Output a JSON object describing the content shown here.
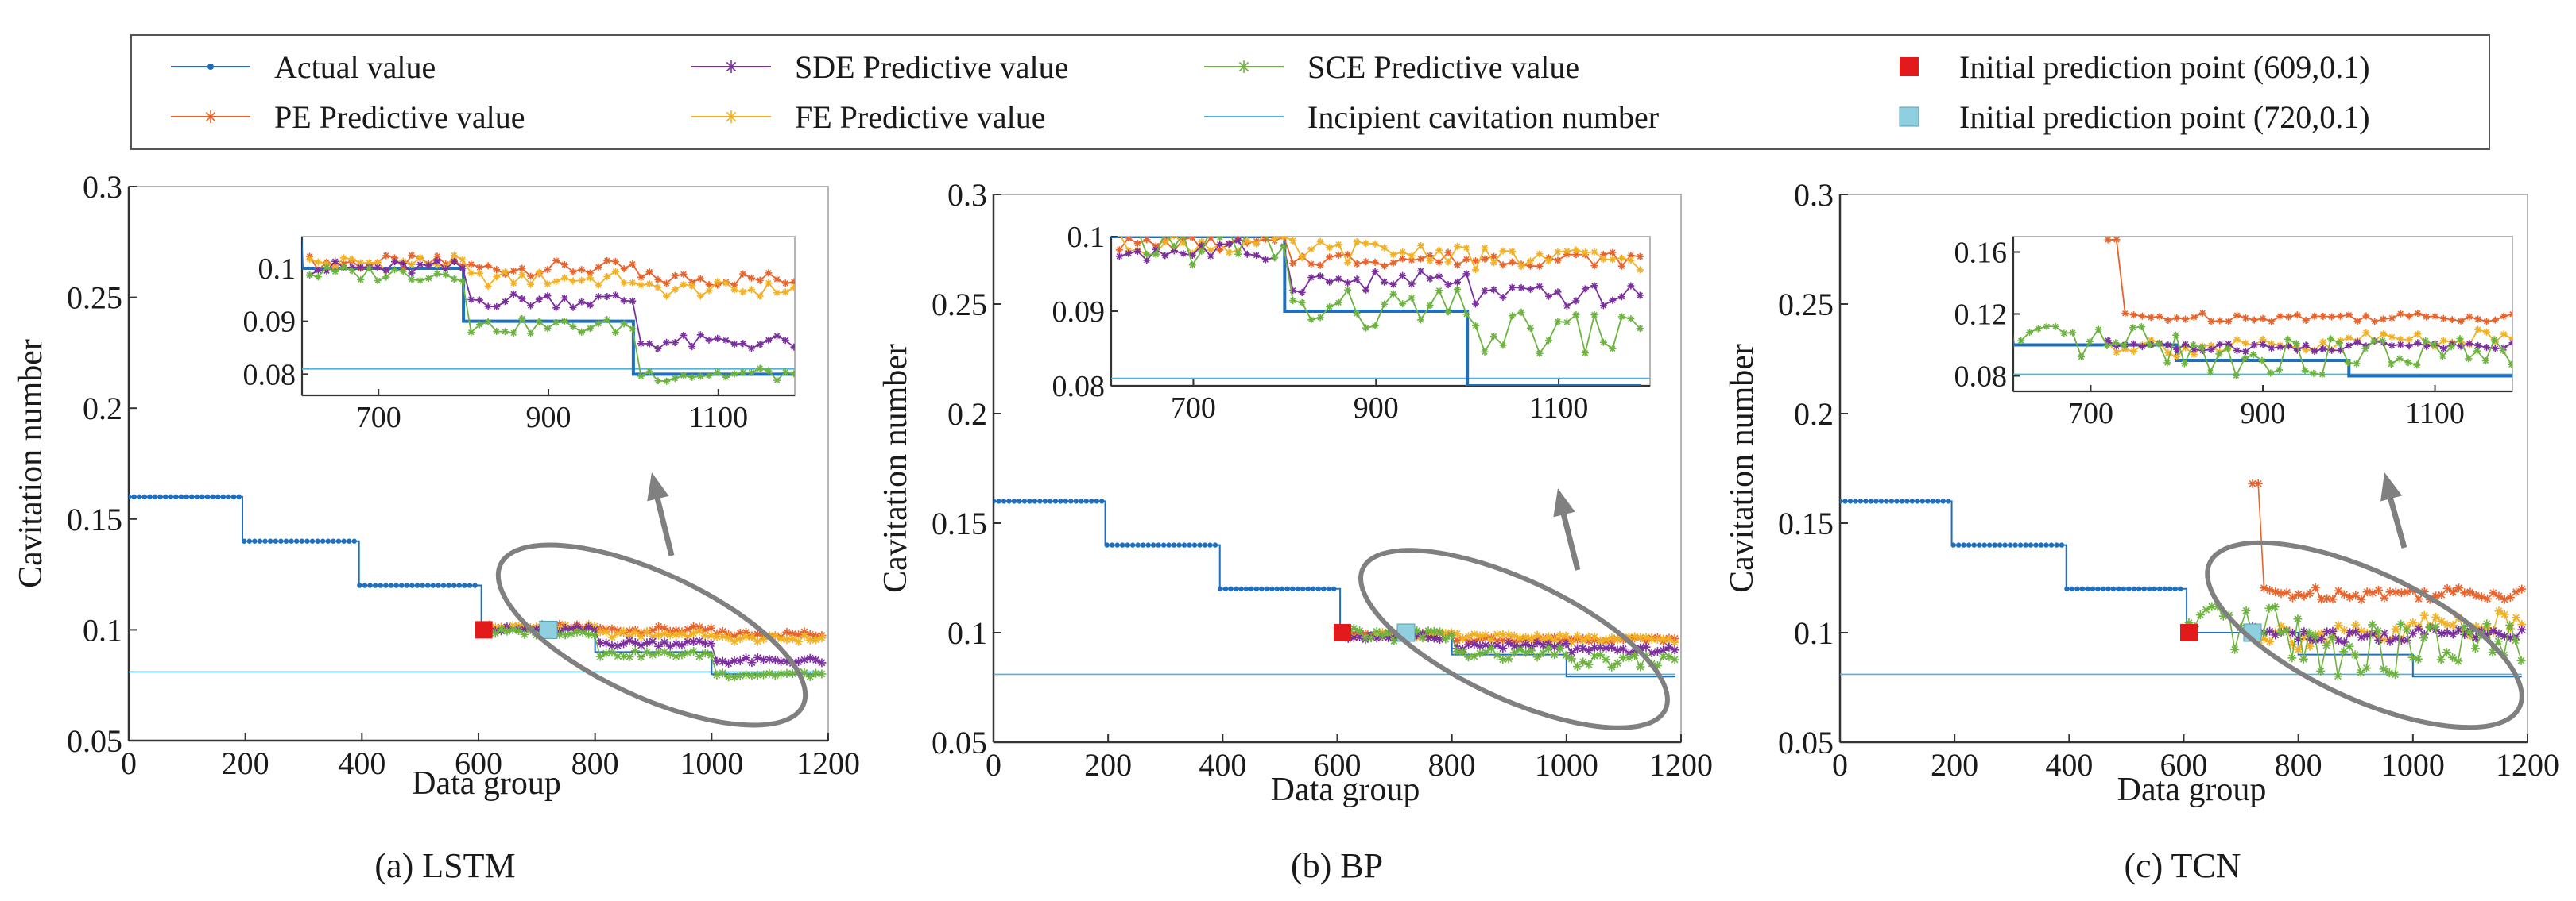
{
  "figure": {
    "colors": {
      "actual": "#1f6fbf",
      "pe": "#e8632b",
      "sde": "#7b2f9e",
      "fe": "#f2b124",
      "sce": "#6db33f",
      "incipient": "#4fb3d9",
      "initial1": "#e31a1c",
      "initial2": "#8fd0e0",
      "arrow": "#808080",
      "axis": "#333333"
    }
  },
  "legend": {
    "items": [
      {
        "key": "actual",
        "label": "Actual value",
        "marker": "dot"
      },
      {
        "key": "pe",
        "label": "PE Predictive value",
        "marker": "asterisk"
      },
      {
        "key": "sde",
        "label": "SDE Predictive value",
        "marker": "asterisk"
      },
      {
        "key": "fe",
        "label": "FE Predictive value",
        "marker": "asterisk"
      },
      {
        "key": "sce",
        "label": "SCE Predictive value",
        "marker": "asterisk"
      },
      {
        "key": "incipient",
        "label": "Incipient cavitation number",
        "marker": "line"
      },
      {
        "key": "initial1",
        "label": "Initial prediction point (609,0.1)",
        "marker": "square"
      },
      {
        "key": "initial2",
        "label": "Initial prediction point (720,0.1)",
        "marker": "square"
      }
    ]
  },
  "chart_data": [
    {
      "type": "line",
      "panel": "a",
      "caption": "(a) LSTM",
      "xlabel": "Data group",
      "ylabel": "Cavitation number",
      "xlim": [
        0,
        1200
      ],
      "ylim": [
        0.05,
        0.3
      ],
      "xticks": [
        "0",
        "200",
        "400",
        "600",
        "800",
        "1000",
        "1200"
      ],
      "yticks": [
        "0.05",
        "0.1",
        "0.15",
        "0.2",
        "0.25",
        "0.3"
      ],
      "actual_steps": [
        [
          0,
          0.16
        ],
        [
          195,
          0.16
        ],
        [
          195,
          0.14
        ],
        [
          395,
          0.14
        ],
        [
          395,
          0.12
        ],
        [
          605,
          0.12
        ],
        [
          605,
          0.1
        ],
        [
          800,
          0.1
        ],
        [
          800,
          0.09
        ],
        [
          1000,
          0.09
        ],
        [
          1000,
          0.08
        ],
        [
          1190,
          0.08
        ]
      ],
      "incipient": 0.081,
      "initial_points": [
        [
          609,
          0.1
        ],
        [
          720,
          0.1
        ]
      ],
      "series": [
        {
          "name": "PE Predictive value",
          "key": "pe",
          "segments": [
            [
              609,
              0.101
            ],
            [
              800,
              0.1
            ],
            [
              1000,
              0.098
            ],
            [
              1190,
              0.097
            ]
          ],
          "noise": 0.0015
        },
        {
          "name": "FE Predictive value",
          "key": "fe",
          "segments": [
            [
              609,
              0.101
            ],
            [
              800,
              0.098
            ],
            [
              1000,
              0.096
            ],
            [
              1190,
              0.094
            ]
          ],
          "noise": 0.0015
        },
        {
          "name": "SDE Predictive value",
          "key": "sde",
          "segments": [
            [
              609,
              0.1
            ],
            [
              800,
              0.094
            ],
            [
              1000,
              0.086
            ],
            [
              1190,
              0.085
            ]
          ],
          "noise": 0.0015
        },
        {
          "name": "SCE Predictive value",
          "key": "sce",
          "segments": [
            [
              609,
              0.099
            ],
            [
              800,
              0.089
            ],
            [
              1000,
              0.08
            ],
            [
              1190,
              0.08
            ]
          ],
          "noise": 0.0015
        }
      ],
      "inset": {
        "xlim": [
          610,
          1190
        ],
        "ylim": [
          0.076,
          0.106
        ],
        "xticks": [
          "700",
          "900",
          "1100"
        ],
        "yticks": [
          "0.08",
          "0.09",
          "0.1"
        ]
      }
    },
    {
      "type": "line",
      "panel": "b",
      "caption": "(b) BP",
      "xlabel": "Data group",
      "ylabel": "Cavitation number",
      "xlim": [
        0,
        1200
      ],
      "ylim": [
        0.05,
        0.3
      ],
      "xticks": [
        "0",
        "200",
        "400",
        "600",
        "800",
        "1000",
        "1200"
      ],
      "yticks": [
        "0.05",
        "0.1",
        "0.15",
        "0.2",
        "0.25",
        "0.3"
      ],
      "actual_steps": [
        [
          0,
          0.16
        ],
        [
          195,
          0.16
        ],
        [
          195,
          0.14
        ],
        [
          395,
          0.14
        ],
        [
          395,
          0.12
        ],
        [
          605,
          0.12
        ],
        [
          605,
          0.1
        ],
        [
          800,
          0.1
        ],
        [
          800,
          0.09
        ],
        [
          1000,
          0.09
        ],
        [
          1000,
          0.08
        ],
        [
          1190,
          0.08
        ]
      ],
      "incipient": 0.081,
      "initial_points": [
        [
          609,
          0.1
        ],
        [
          720,
          0.1
        ]
      ],
      "series": [
        {
          "name": "PE Predictive value",
          "key": "pe",
          "segments": [
            [
              609,
              0.099
            ],
            [
              800,
              0.097
            ],
            [
              1000,
              0.097
            ],
            [
              1190,
              0.097
            ]
          ],
          "noise": 0.001
        },
        {
          "name": "FE Predictive value",
          "key": "fe",
          "segments": [
            [
              609,
              0.099
            ],
            [
              800,
              0.098
            ],
            [
              1000,
              0.097
            ],
            [
              1190,
              0.098
            ]
          ],
          "noise": 0.0015
        },
        {
          "name": "SDE Predictive value",
          "key": "sde",
          "segments": [
            [
              609,
              0.098
            ],
            [
              800,
              0.094
            ],
            [
              1000,
              0.092
            ],
            [
              1190,
              0.092
            ]
          ],
          "noise": 0.0015
        },
        {
          "name": "SCE Predictive value",
          "key": "sce",
          "segments": [
            [
              609,
              0.099
            ],
            [
              800,
              0.09
            ],
            [
              1000,
              0.087
            ],
            [
              1190,
              0.087
            ]
          ],
          "noise": 0.003
        }
      ],
      "inset": {
        "xlim": [
          610,
          1200
        ],
        "ylim": [
          0.08,
          0.1
        ],
        "xticks": [
          "700",
          "900",
          "1100"
        ],
        "yticks": [
          "0.08",
          "0.09",
          "0.1"
        ]
      }
    },
    {
      "type": "line",
      "panel": "c",
      "caption": "(c) TCN",
      "xlabel": "Data group",
      "ylabel": "Cavitation number",
      "xlim": [
        0,
        1200
      ],
      "ylim": [
        0.05,
        0.3
      ],
      "xticks": [
        "0",
        "200",
        "400",
        "600",
        "800",
        "1000",
        "1200"
      ],
      "yticks": [
        "0.05",
        "0.1",
        "0.15",
        "0.2",
        "0.25",
        "0.3"
      ],
      "actual_steps": [
        [
          0,
          0.16
        ],
        [
          195,
          0.16
        ],
        [
          195,
          0.14
        ],
        [
          395,
          0.14
        ],
        [
          395,
          0.12
        ],
        [
          605,
          0.12
        ],
        [
          605,
          0.1
        ],
        [
          800,
          0.1
        ],
        [
          800,
          0.09
        ],
        [
          1000,
          0.09
        ],
        [
          1000,
          0.08
        ],
        [
          1190,
          0.08
        ]
      ],
      "incipient": 0.081,
      "initial_points": [
        [
          609,
          0.1
        ],
        [
          720,
          0.1
        ]
      ],
      "series": [
        {
          "name": "PE Predictive value",
          "key": "pe",
          "segments": [
            [
              720,
              0.168
            ],
            [
              740,
              0.118
            ],
            [
              1000,
              0.118
            ],
            [
              1190,
              0.118
            ]
          ],
          "noise": 0.003
        },
        {
          "name": "FE Predictive value",
          "key": "fe",
          "segments": [
            [
              720,
              0.1
            ],
            [
              800,
              0.098
            ],
            [
              1000,
              0.104
            ],
            [
              1190,
              0.104
            ]
          ],
          "noise": 0.006
        },
        {
          "name": "SDE Predictive value",
          "key": "sde",
          "segments": [
            [
              720,
              0.1
            ],
            [
              800,
              0.098
            ],
            [
              1000,
              0.1
            ],
            [
              1190,
              0.1
            ]
          ],
          "noise": 0.003
        },
        {
          "name": "SCE Predictive value",
          "key": "sce",
          "segments": [
            [
              609,
              0.1
            ],
            [
              800,
              0.092
            ],
            [
              1000,
              0.094
            ],
            [
              1190,
              0.094
            ]
          ],
          "noise": 0.012
        }
      ],
      "inset": {
        "xlim": [
          610,
          1190
        ],
        "ylim": [
          0.07,
          0.17
        ],
        "xticks": [
          "700",
          "900",
          "1100"
        ],
        "yticks": [
          "0.08",
          "0.12",
          "0.16"
        ]
      }
    }
  ]
}
